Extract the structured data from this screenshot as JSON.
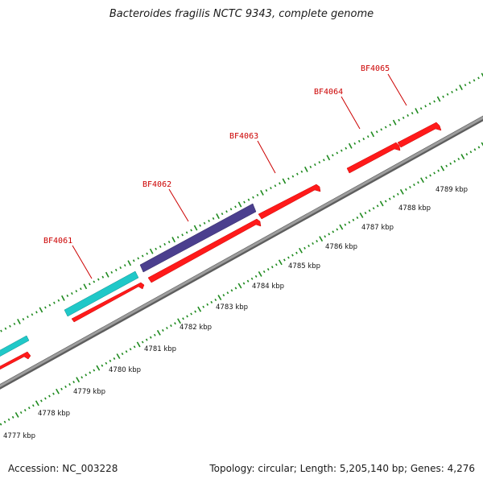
{
  "title": "Bacteroides fragilis NCTC 9343, complete genome",
  "footer": {
    "accession": "Accession: NC_003228",
    "summary": "Topology: circular; Length: 5,205,140 bp; Genes: 4,276"
  },
  "colors": {
    "backbone": "#8f8f8f",
    "tick": "#1f8a1f",
    "forward_gene": "#ff1a1a",
    "cyan_feature": "#20c8c8",
    "purple_feature": "#4b3f8e",
    "gene_label": "#cc0000",
    "leader": "#cc0000"
  },
  "kbp_labels": [
    "4777 kbp",
    "4778 kbp",
    "4779 kbp",
    "4780 kbp",
    "4781 kbp",
    "4782 kbp",
    "4783 kbp",
    "4784 kbp",
    "4785 kbp",
    "4786 kbp",
    "4787 kbp",
    "4788 kbp",
    "4789 kbp"
  ],
  "gene_labels": [
    "BF4061",
    "BF4062",
    "BF4063",
    "BF4064",
    "BF4065"
  ]
}
